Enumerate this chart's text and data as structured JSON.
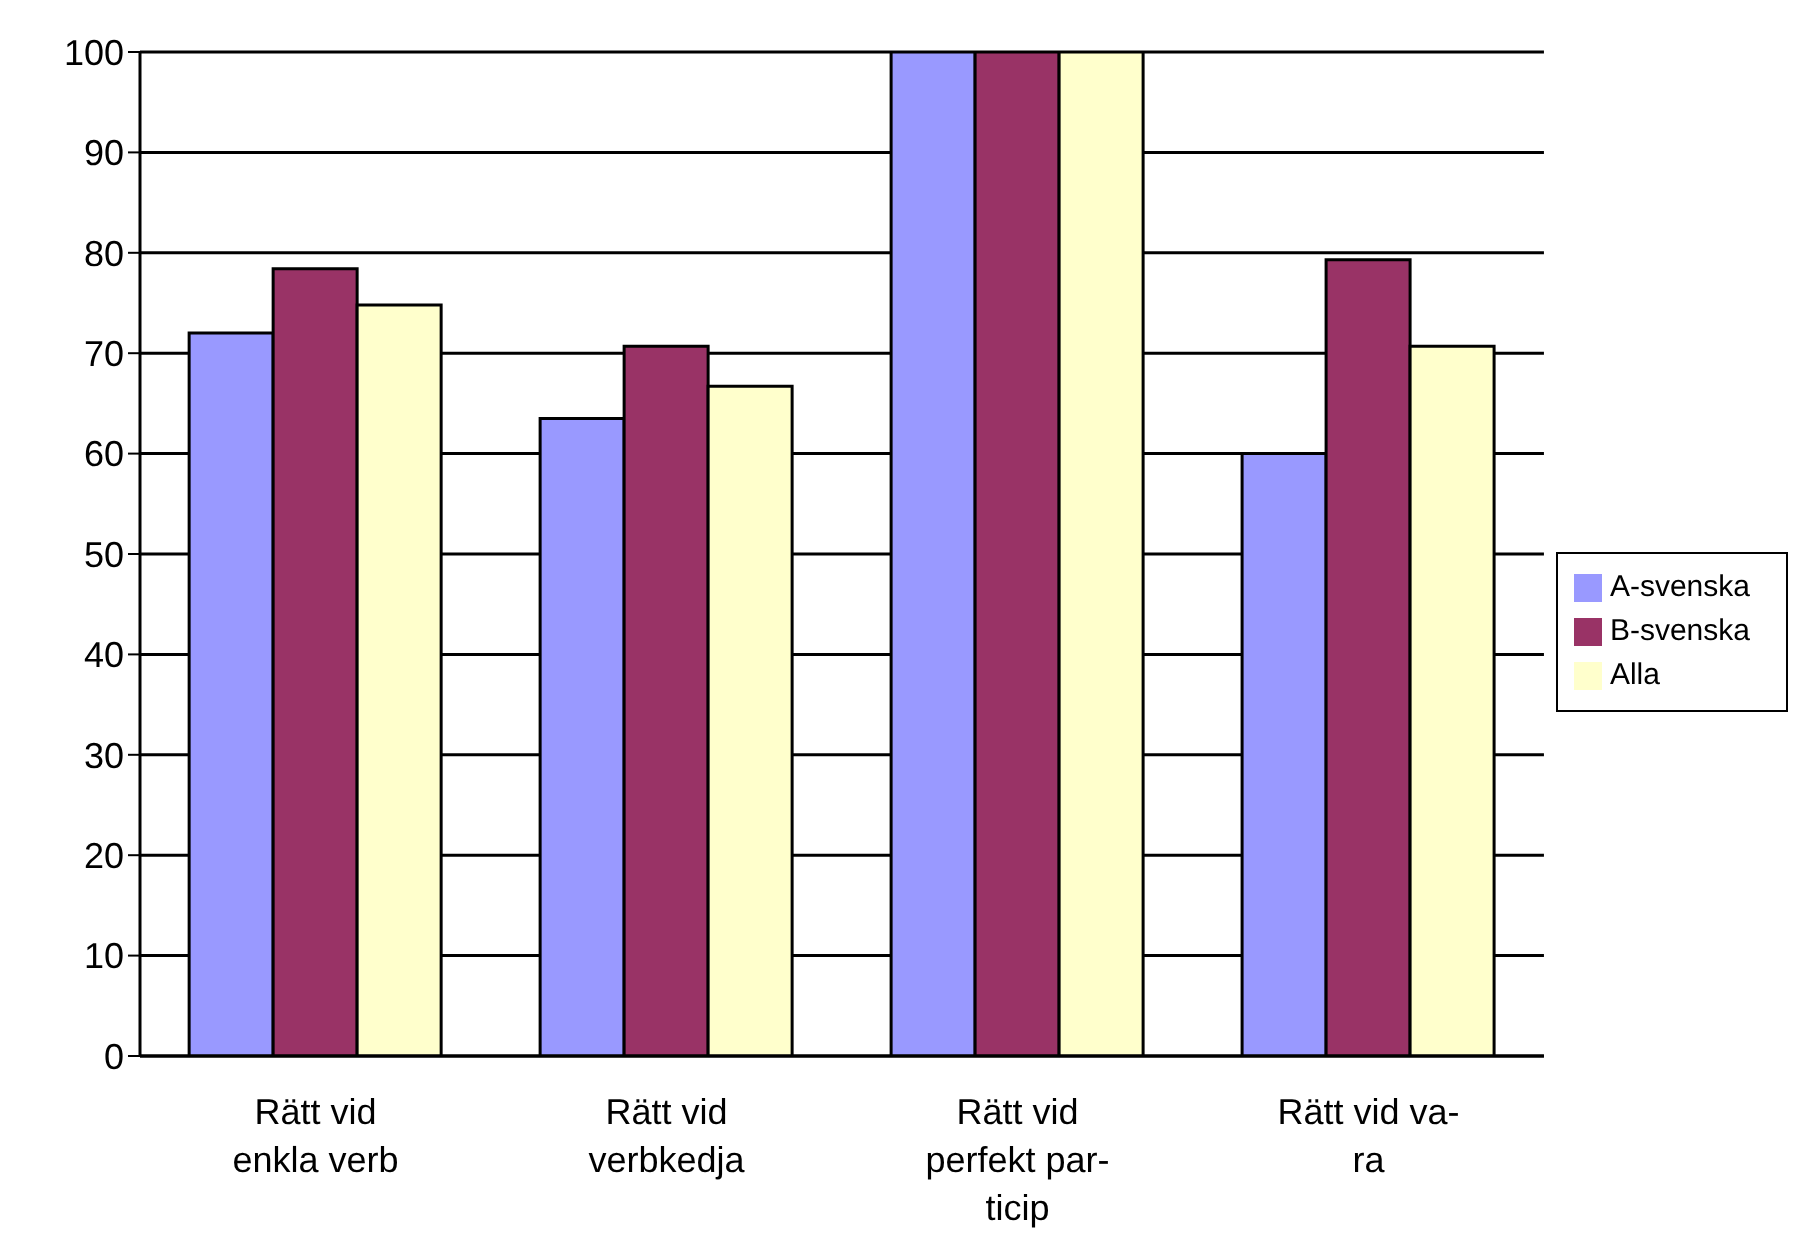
{
  "chart_data": {
    "type": "bar",
    "categories": [
      "Rätt vid enkla verb",
      "Rätt vid verbkedja",
      "Rätt vid perfekt par-ticip",
      "Rätt vid va-ra"
    ],
    "series": [
      {
        "name": "A-svenska",
        "color": "#9999ff",
        "values": [
          72,
          63.5,
          100,
          60
        ]
      },
      {
        "name": "B-svenska",
        "color": "#993366",
        "values": [
          78.4,
          70.7,
          100,
          79.3
        ]
      },
      {
        "name": "Alla",
        "color": "#ffffcc",
        "values": [
          74.8,
          66.7,
          100,
          70.7
        ]
      }
    ],
    "ylim": [
      0,
      100
    ],
    "yticks": [
      0,
      10,
      20,
      30,
      40,
      50,
      60,
      70,
      80,
      90,
      100
    ],
    "grid": "y",
    "legend": "right"
  }
}
